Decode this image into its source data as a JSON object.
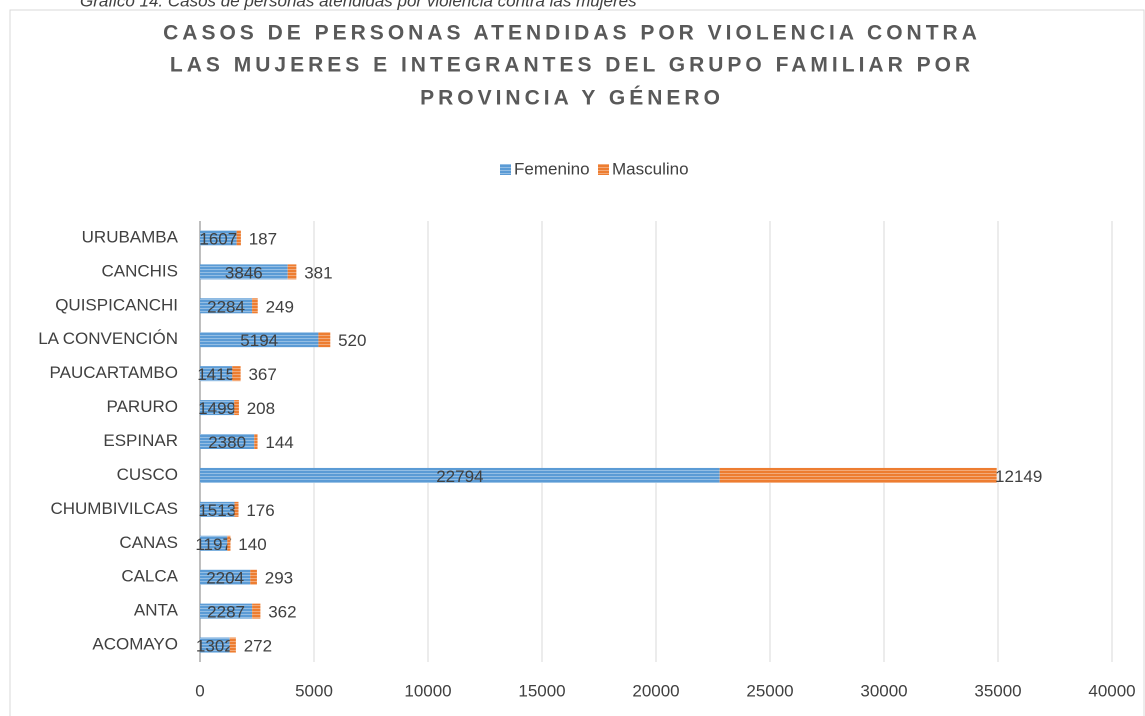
{
  "chart_data": {
    "type": "stacked-barh",
    "caption": "Gráfico 14.      Casos de personas atendidas por violencia contra las mujeres",
    "title": [
      "CASOS DE PERSONAS ATENDIDAS POR VIOLENCIA CONTRA",
      "LAS MUJERES E INTEGRANTES DEL GRUPO FAMILIAR POR",
      "PROVINCIA Y GÉNERO"
    ],
    "categories": [
      "URUBAMBA",
      "CANCHIS",
      "QUISPICANCHI",
      "LA CONVENCIÓN",
      "PAUCARTAMBO",
      "PARURO",
      "ESPINAR",
      "CUSCO",
      "CHUMBIVILCAS",
      "CANAS",
      "CALCA",
      "ANTA",
      "ACOMAYO"
    ],
    "series": [
      {
        "name": "Femenino",
        "color": "#5b9bd5",
        "values": [
          1607,
          3846,
          2284,
          5194,
          1415,
          1499,
          2380,
          22794,
          1513,
          1197,
          2204,
          2287,
          1302
        ]
      },
      {
        "name": "Masculino",
        "color": "#ed7d31",
        "values": [
          187,
          381,
          249,
          520,
          367,
          208,
          144,
          12149,
          176,
          140,
          293,
          362,
          272
        ]
      }
    ],
    "xlim": [
      0,
      40000
    ],
    "xticks": [
      0,
      5000,
      10000,
      15000,
      20000,
      25000,
      30000,
      35000,
      40000
    ],
    "grid": true,
    "legend": "top"
  }
}
